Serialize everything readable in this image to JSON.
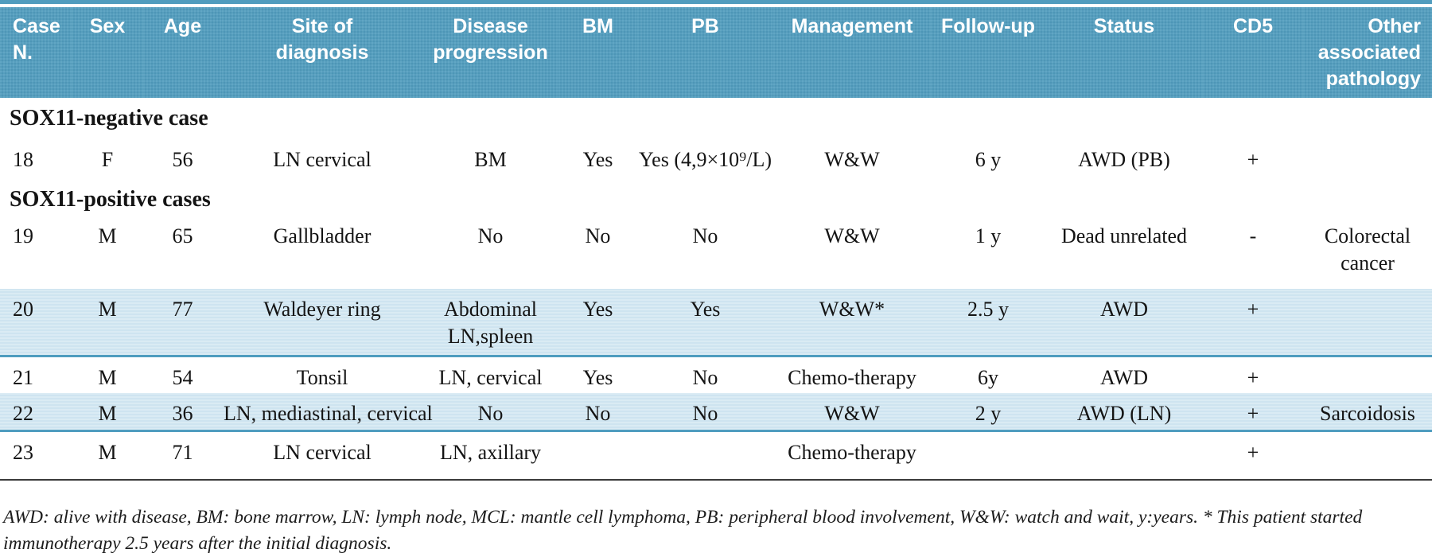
{
  "colors": {
    "header_bg": "#509cbe",
    "highlight_bg": "#cee4f0",
    "accent_border": "#4f9dbf",
    "text": "#141414"
  },
  "table": {
    "header": [
      {
        "key": "case-n",
        "lines": [
          "Case",
          "N."
        ],
        "align": "left"
      },
      {
        "key": "sex",
        "lines": [
          "Sex"
        ]
      },
      {
        "key": "age",
        "lines": [
          "Age"
        ]
      },
      {
        "key": "site",
        "lines": [
          "Site of",
          "diagnosis"
        ]
      },
      {
        "key": "progression",
        "lines": [
          "Disease",
          "progression"
        ]
      },
      {
        "key": "bm",
        "lines": [
          "BM"
        ]
      },
      {
        "key": "pb",
        "lines": [
          "PB"
        ]
      },
      {
        "key": "management",
        "lines": [
          "Management"
        ]
      },
      {
        "key": "follow-up",
        "lines": [
          "Follow-up"
        ]
      },
      {
        "key": "status",
        "lines": [
          "Status"
        ]
      },
      {
        "key": "cd5",
        "lines": [
          "CD5"
        ]
      },
      {
        "key": "other",
        "lines": [
          "Other",
          "associated",
          "pathology"
        ],
        "align": "right"
      }
    ],
    "rows": [
      {
        "type": "section",
        "label": "SOX11-negative case"
      },
      {
        "type": "data",
        "cells": [
          "18",
          "F",
          "56",
          "LN cervical",
          "BM",
          "Yes",
          "Yes (4,9×10⁹/L)",
          "W&W",
          "6 y",
          "AWD (PB)",
          "+",
          ""
        ]
      },
      {
        "type": "section",
        "label": "SOX11-positive cases"
      },
      {
        "type": "data",
        "cells": [
          "19",
          "M",
          "65",
          "Gallbladder",
          "No",
          "No",
          "No",
          "W&W",
          "1 y",
          "Dead unrelated",
          "-",
          [
            "Colorectal",
            "cancer"
          ]
        ]
      },
      {
        "type": "data",
        "highlight": true,
        "cells": [
          "20",
          "M",
          "77",
          "Waldeyer ring",
          [
            "Abdominal",
            "LN,spleen"
          ],
          "Yes",
          "Yes",
          "W&W*",
          "2.5 y",
          "AWD",
          "+",
          ""
        ]
      },
      {
        "type": "data",
        "cells": [
          "21",
          "M",
          "54",
          "Tonsil",
          "LN, cervical",
          "Yes",
          "No",
          "Chemo-therapy",
          "6y",
          "AWD",
          "+",
          ""
        ]
      },
      {
        "type": "data",
        "highlight": true,
        "cells": [
          "22",
          "M",
          "36",
          "LN, mediastinal, cervical",
          "No",
          "No",
          "No",
          "W&W",
          "2 y",
          "AWD (LN)",
          "+",
          "Sarcoidosis"
        ]
      },
      {
        "type": "data",
        "cells": [
          "23",
          "M",
          "71",
          "LN cervical",
          "LN, axillary",
          "",
          "",
          "Chemo-therapy",
          "",
          "",
          "+",
          ""
        ]
      }
    ]
  },
  "footnote": "AWD: alive with disease, BM: bone marrow, LN: lymph node, MCL: mantle cell lymphoma, PB: peripheral blood involvement, W&W: watch and wait, y:years. * This patient started immunotherapy 2.5 years after the initial diagnosis."
}
